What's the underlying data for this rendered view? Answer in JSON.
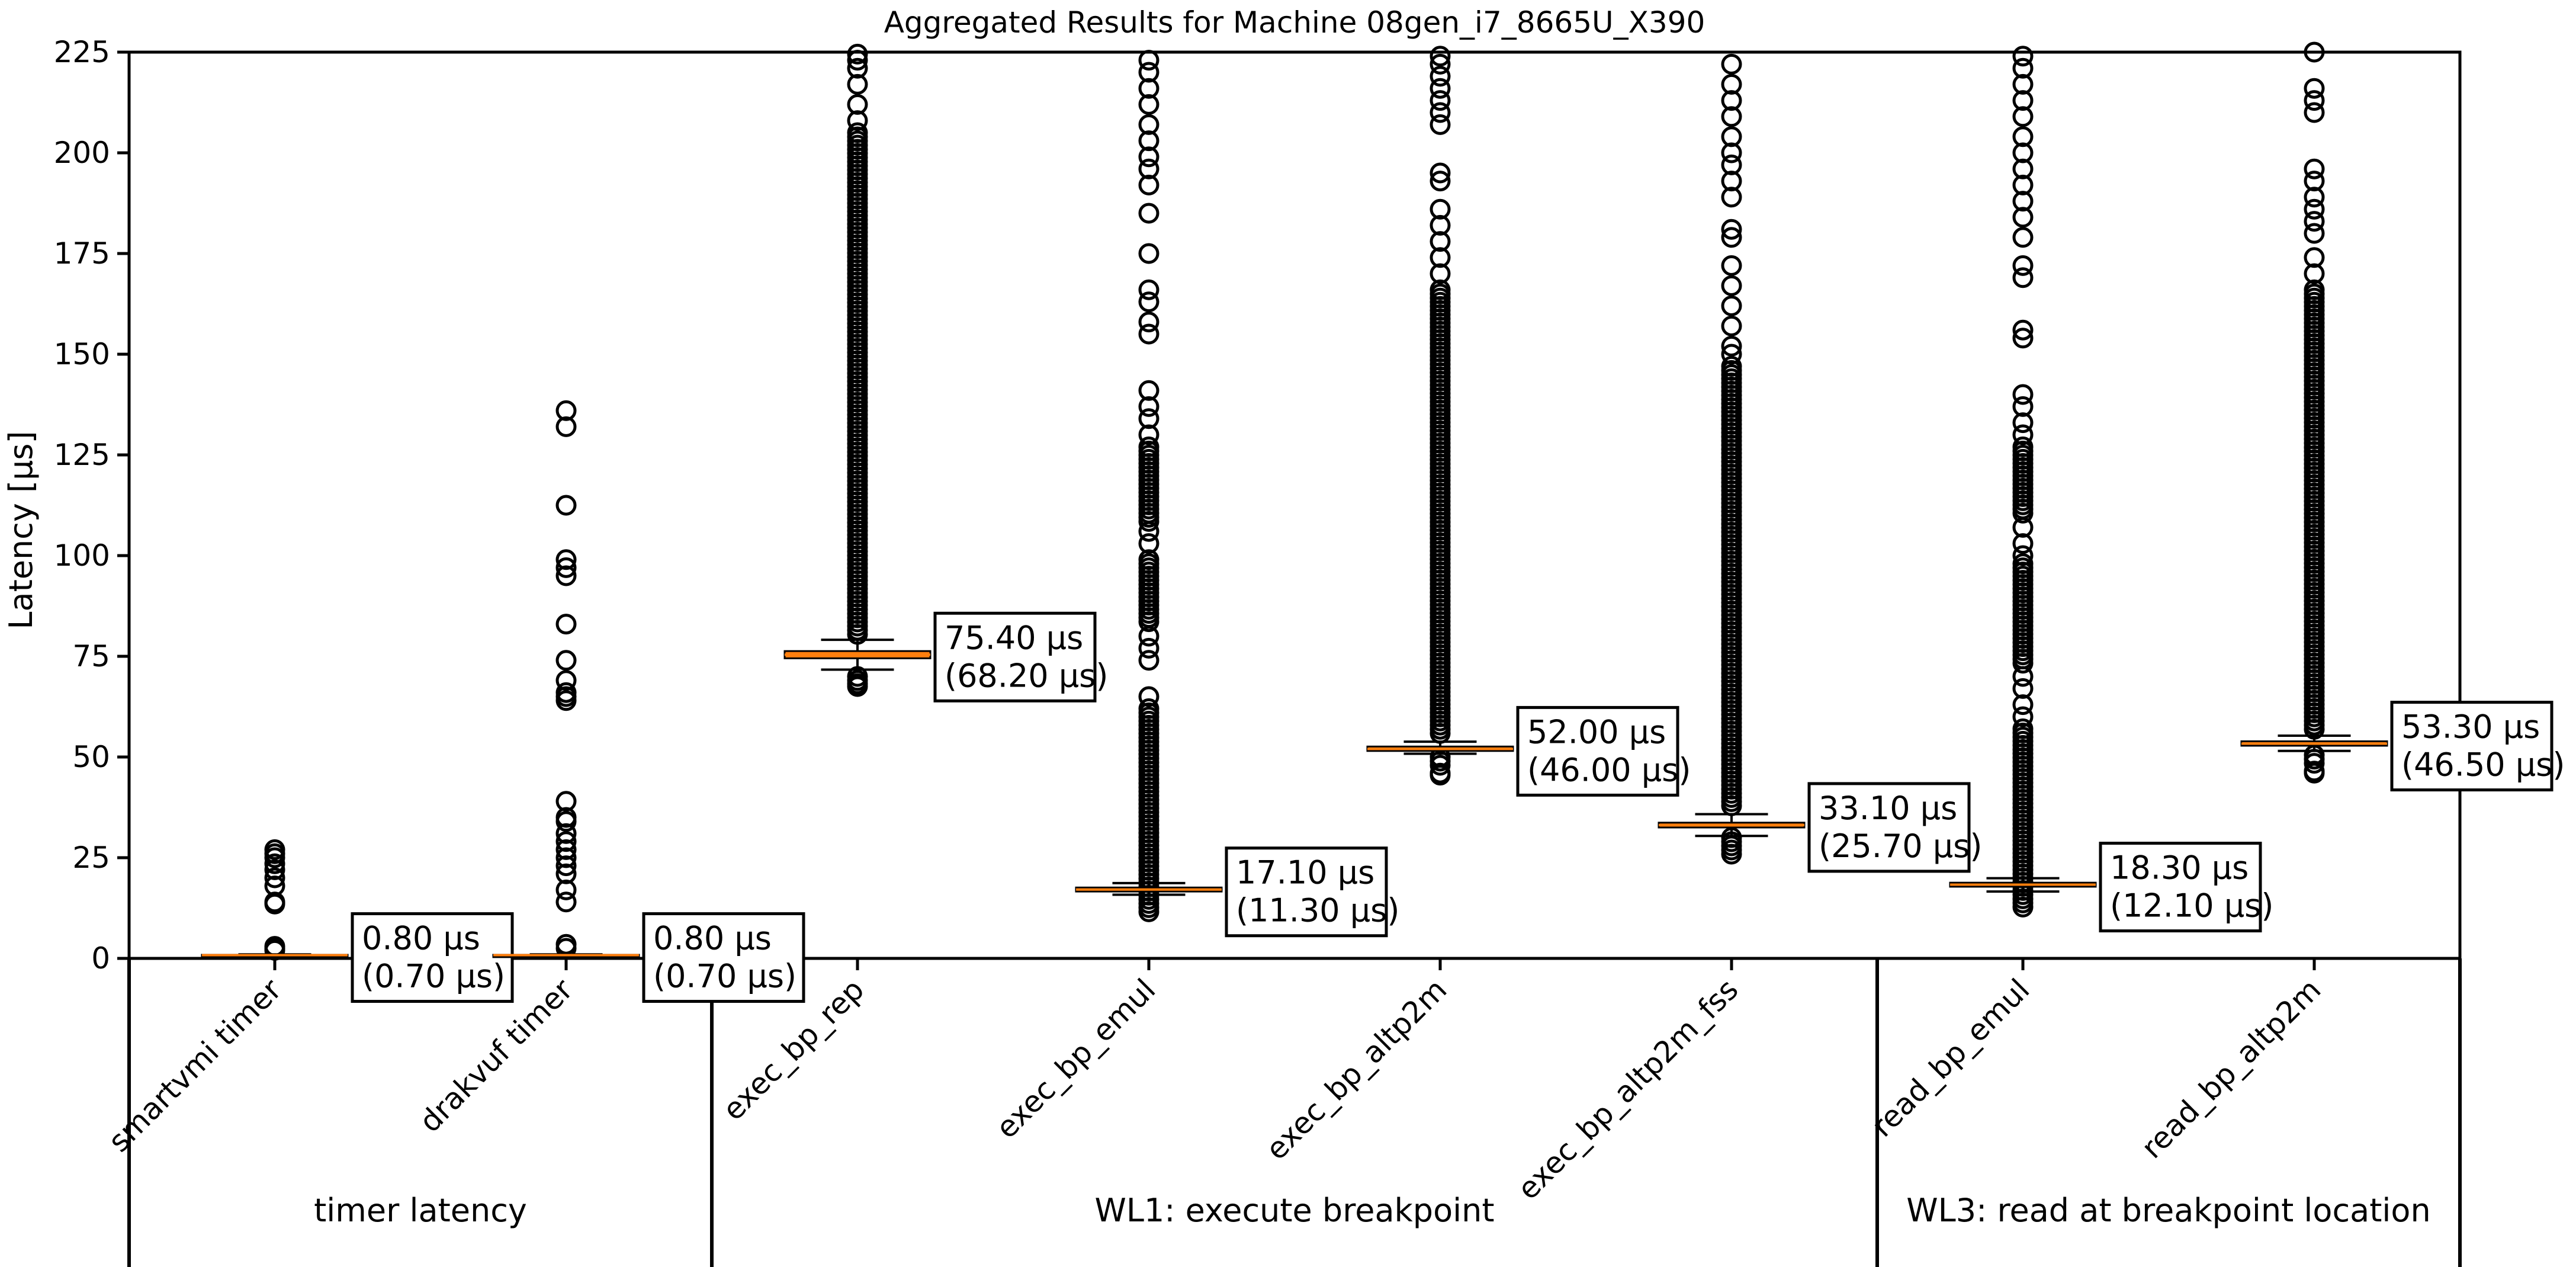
{
  "chart_data": {
    "type": "box",
    "title": "Aggregated Results for Machine 08gen_i7_8665U_X390",
    "xlabel": "",
    "ylabel": "Latency [µs]",
    "ylim": [
      0,
      225
    ],
    "yticks": [
      0,
      25,
      50,
      75,
      100,
      125,
      150,
      175,
      200,
      225
    ],
    "grid": false,
    "colors": {
      "median": "#ff7f0e",
      "box": "#000000",
      "flier": "#000000"
    },
    "groups": [
      {
        "label": "timer latency",
        "categories": [
          "smartvmi timer",
          "drakvuf timer"
        ]
      },
      {
        "label": "WL1: execute breakpoint",
        "categories": [
          "exec_bp_rep",
          "exec_bp_emul",
          "exec_bp_altp2m",
          "exec_bp_altp2m_fss"
        ]
      },
      {
        "label": "WL3: read at breakpoint location",
        "categories": [
          "read_bp_emul",
          "read_bp_altp2m"
        ]
      }
    ],
    "series": [
      {
        "category": "smartvmi timer",
        "median": 0.8,
        "q1": 0.7,
        "q3": 0.9,
        "whislo": 0.6,
        "whishi": 1.0,
        "annotation": [
          "0.80 µs",
          "(0.70 µs)"
        ],
        "fliers": [
          2.0,
          2.5,
          3.0,
          13.5,
          14.0,
          18.0,
          20.0,
          22.0,
          23.5,
          25.0,
          26.0,
          27.0
        ],
        "flier_bands": []
      },
      {
        "category": "drakvuf timer",
        "median": 0.8,
        "q1": 0.7,
        "q3": 0.9,
        "whislo": 0.6,
        "whishi": 1.0,
        "annotation": [
          "0.80 µs",
          "(0.70 µs)"
        ],
        "fliers": [
          2.5,
          3.5,
          14.0,
          17.0,
          21.0,
          23.0,
          25.0,
          27.0,
          29.0,
          31.0,
          34.0,
          35.0,
          39.0,
          64.0,
          65.0,
          66.0,
          69.0,
          74.0,
          83.0,
          95.0,
          97.0,
          99.0,
          112.5,
          132.0,
          136.0
        ],
        "flier_bands": []
      },
      {
        "category": "exec_bp_rep",
        "median": 75.4,
        "q1": 74.5,
        "q3": 76.3,
        "whislo": 71.7,
        "whishi": 79.1,
        "annotation": [
          "75.40 µs",
          "(68.20 µs)"
        ],
        "fliers": [
          67.5,
          68.2,
          69.0,
          70.0,
          208.0,
          212.0,
          217.0,
          221.0,
          223.0,
          224.5
        ],
        "flier_bands": [
          [
            80,
            205
          ]
        ]
      },
      {
        "category": "exec_bp_emul",
        "median": 17.1,
        "q1": 16.6,
        "q3": 17.6,
        "whislo": 15.8,
        "whishi": 18.7,
        "annotation": [
          "17.10 µs",
          "(11.30 µs)"
        ],
        "fliers": [
          65.0,
          74.0,
          77.0,
          80.0,
          99.0,
          103.0,
          106.0,
          130.0,
          134.0,
          137.0,
          141.0,
          155.0,
          158.0,
          163.0,
          166.0,
          175.0,
          185.0,
          192.0,
          196.0,
          199.0,
          203.0,
          207.0,
          212.0,
          216.0,
          220.0,
          223.0
        ],
        "flier_bands": [
          [
            11,
            62
          ],
          [
            83,
            98
          ],
          [
            108,
            127
          ]
        ]
      },
      {
        "category": "exec_bp_altp2m",
        "median": 52.0,
        "q1": 51.5,
        "q3": 52.6,
        "whislo": 50.8,
        "whishi": 53.8,
        "annotation": [
          "52.00 µs",
          "(46.00 µs)"
        ],
        "fliers": [
          45.5,
          46.0,
          170.0,
          174.0,
          178.0,
          182.0,
          186.0,
          193.0,
          195.0,
          207.0,
          210.0,
          213.0,
          216.0,
          219.0,
          222.0,
          224.0
        ],
        "flier_bands": [
          [
            47,
            50
          ],
          [
            55,
            166
          ]
        ]
      },
      {
        "category": "exec_bp_altp2m_fss",
        "median": 33.1,
        "q1": 32.5,
        "q3": 33.7,
        "whislo": 30.4,
        "whishi": 35.8,
        "annotation": [
          "33.10 µs",
          "(25.70 µs)"
        ],
        "fliers": [
          150.0,
          152.0,
          157.0,
          162.0,
          167.0,
          172.0,
          179.0,
          181.0,
          189.0,
          193.0,
          197.0,
          200.0,
          204.0,
          209.0,
          213.0,
          217.0,
          222.0
        ],
        "flier_bands": [
          [
            25.5,
            30
          ],
          [
            37,
            147
          ]
        ]
      },
      {
        "category": "read_bp_emul",
        "median": 18.3,
        "q1": 17.8,
        "q3": 18.8,
        "whislo": 16.6,
        "whishi": 19.9,
        "annotation": [
          "18.30 µs",
          "(12.10 µs)"
        ],
        "fliers": [
          60.0,
          63.0,
          67.0,
          70.0,
          100.0,
          103.0,
          107.0,
          130.0,
          133.0,
          137.0,
          140.0,
          154.0,
          156.0,
          169.0,
          172.0,
          179.0,
          184.0,
          188.0,
          192.0,
          196.0,
          200.0,
          204.0,
          209.0,
          213.0,
          217.0,
          221.0,
          224.0
        ],
        "flier_bands": [
          [
            12,
            57
          ],
          [
            73,
            98
          ],
          [
            110,
            127
          ]
        ]
      },
      {
        "category": "read_bp_altp2m",
        "median": 53.3,
        "q1": 52.8,
        "q3": 53.9,
        "whislo": 51.5,
        "whishi": 55.3,
        "annotation": [
          "53.30 µs",
          "(46.50 µs)"
        ],
        "fliers": [
          46.0,
          46.5,
          170.0,
          174.0,
          180.0,
          183.0,
          186.0,
          189.0,
          193.0,
          196.0,
          210.0,
          213.0,
          216.0,
          225.0
        ],
        "flier_bands": [
          [
            47.5,
            50.5
          ],
          [
            56,
            166
          ]
        ]
      }
    ]
  }
}
